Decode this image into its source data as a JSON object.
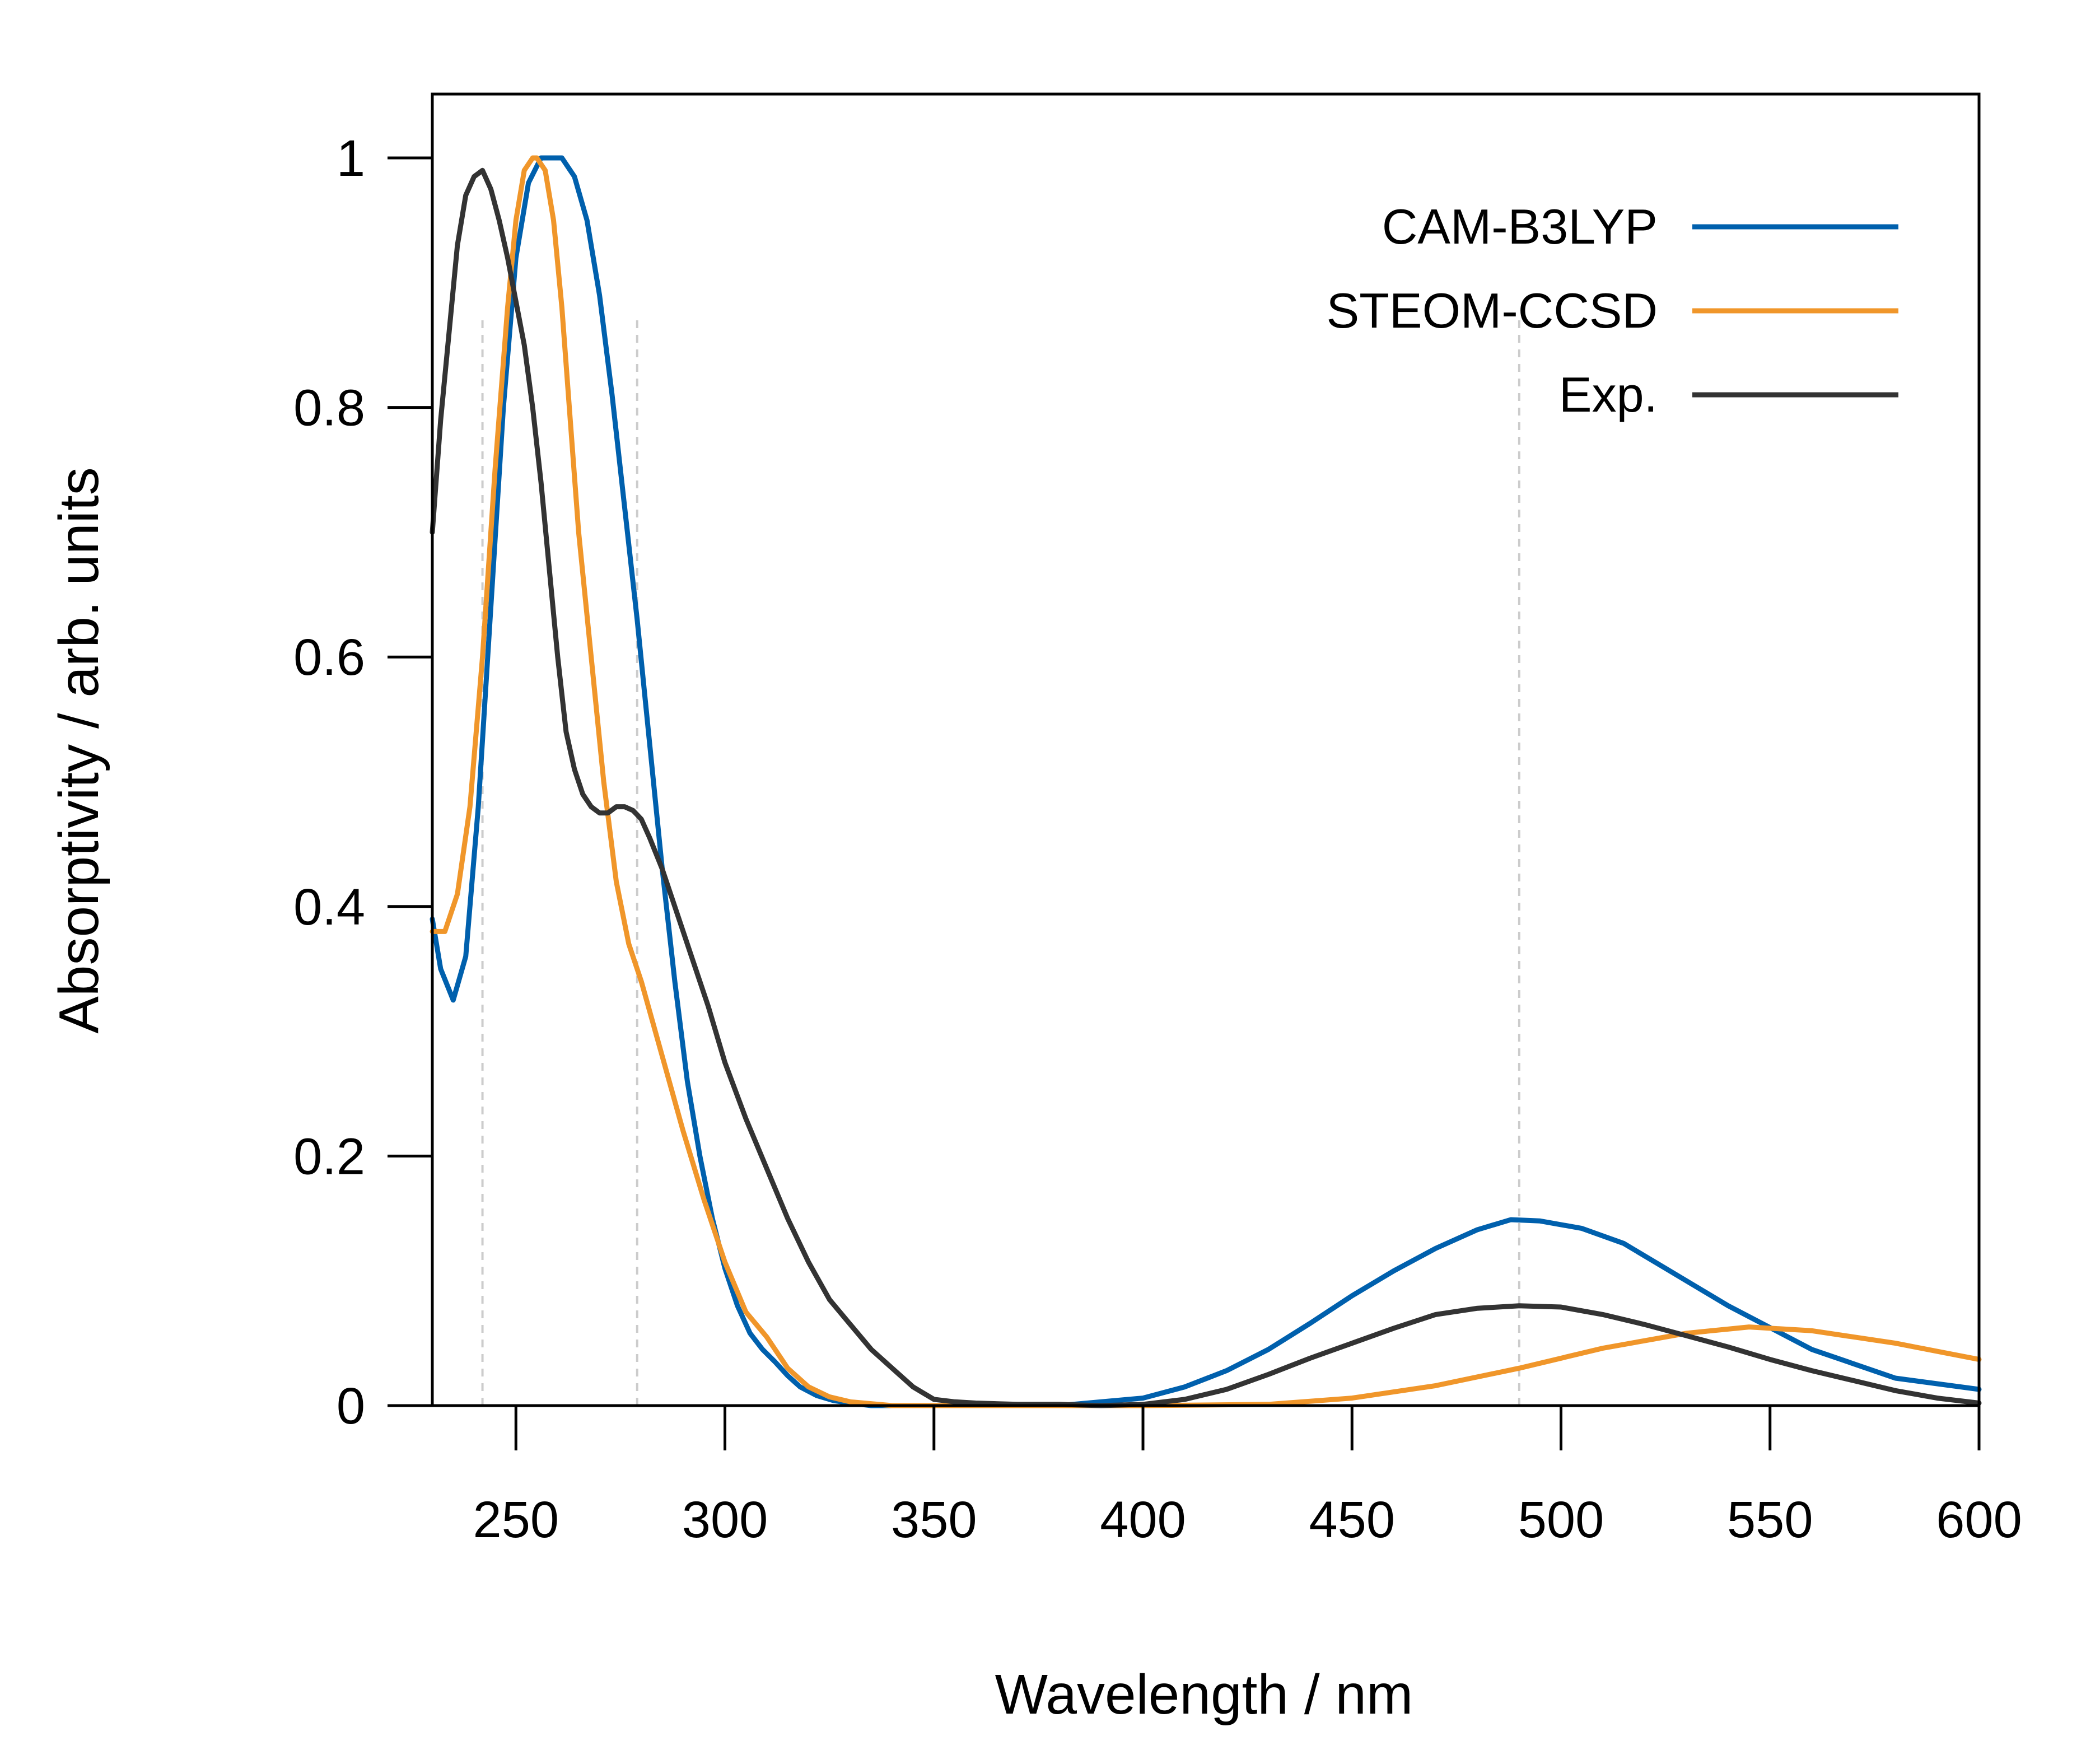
{
  "chart_data": {
    "type": "line",
    "title": "",
    "xlabel": "Wavelength / nm",
    "ylabel": "Absorptivity / arb. units",
    "xlim": [
      230,
      600
    ],
    "ylim": [
      0,
      1.05
    ],
    "grid": false,
    "legend_position": "top-right",
    "x_ticks": [
      250,
      300,
      350,
      400,
      450,
      500,
      550,
      600
    ],
    "x_tick_labels": [
      "250",
      "300",
      "350",
      "400",
      "450",
      "500",
      "550",
      "600"
    ],
    "y_ticks": [
      0,
      0.2,
      0.4,
      0.6,
      0.8,
      1
    ],
    "y_tick_labels": [
      "0",
      "0.2",
      "0.4",
      "0.6",
      "0.8",
      "1"
    ],
    "reference_lines_x": [
      242,
      279,
      490
    ],
    "series": [
      {
        "name": "CAM-B3LYP",
        "color": "#0060ad",
        "x": [
          230,
          232,
          235,
          238,
          241,
          244,
          247,
          250,
          253,
          256,
          259,
          261,
          264,
          267,
          270,
          273,
          276,
          279,
          282,
          285,
          288,
          291,
          294,
          297,
          300,
          303,
          306,
          309,
          312,
          315,
          318,
          322,
          326,
          330,
          335,
          340,
          350,
          360,
          380,
          400,
          410,
          420,
          430,
          440,
          450,
          460,
          470,
          480,
          488,
          495,
          505,
          515,
          525,
          540,
          560,
          580,
          600
        ],
        "y": [
          0.39,
          0.35,
          0.325,
          0.36,
          0.48,
          0.64,
          0.8,
          0.92,
          0.98,
          1.0,
          1.0,
          1.0,
          0.985,
          0.95,
          0.89,
          0.81,
          0.72,
          0.63,
          0.53,
          0.43,
          0.34,
          0.26,
          0.2,
          0.15,
          0.11,
          0.08,
          0.058,
          0.045,
          0.035,
          0.024,
          0.015,
          0.008,
          0.004,
          0.002,
          0.0,
          0.0,
          0.0,
          0.0,
          0.0,
          0.006,
          0.015,
          0.028,
          0.045,
          0.066,
          0.088,
          0.108,
          0.126,
          0.141,
          0.149,
          0.148,
          0.142,
          0.13,
          0.11,
          0.08,
          0.045,
          0.022,
          0.013
        ]
      },
      {
        "name": "STEOM-CCSD",
        "color": "#f0962a",
        "x": [
          230,
          233,
          236,
          239,
          242,
          245,
          248,
          250,
          252,
          254,
          255,
          257,
          259,
          261,
          263,
          265,
          268,
          271,
          274,
          277,
          280,
          285,
          290,
          295,
          300,
          305,
          310,
          315,
          320,
          325,
          330,
          340,
          350,
          400,
          430,
          450,
          470,
          490,
          510,
          530,
          545,
          560,
          580,
          600
        ],
        "y": [
          0.38,
          0.38,
          0.41,
          0.48,
          0.6,
          0.75,
          0.88,
          0.95,
          0.99,
          1.0,
          1.0,
          0.99,
          0.95,
          0.88,
          0.79,
          0.7,
          0.6,
          0.5,
          0.42,
          0.37,
          0.34,
          0.28,
          0.22,
          0.165,
          0.115,
          0.075,
          0.055,
          0.03,
          0.015,
          0.007,
          0.003,
          0.0,
          0.0,
          0.0,
          0.001,
          0.006,
          0.016,
          0.03,
          0.046,
          0.058,
          0.063,
          0.06,
          0.05,
          0.037
        ]
      },
      {
        "name": "Exp.",
        "color": "#333333",
        "x": [
          230,
          232,
          234,
          236,
          238,
          240,
          242,
          244,
          246,
          248,
          250,
          252,
          254,
          256,
          258,
          260,
          262,
          264,
          266,
          268,
          270,
          272,
          274,
          276,
          278,
          280,
          282,
          285,
          288,
          292,
          296,
          300,
          305,
          310,
          315,
          320,
          325,
          330,
          335,
          340,
          345,
          350,
          355,
          360,
          370,
          380,
          390,
          400,
          410,
          420,
          430,
          440,
          450,
          460,
          470,
          480,
          490,
          500,
          510,
          520,
          530,
          540,
          550,
          560,
          570,
          580,
          590,
          600
        ],
        "y": [
          0.7,
          0.79,
          0.86,
          0.93,
          0.97,
          0.985,
          0.99,
          0.975,
          0.95,
          0.92,
          0.885,
          0.85,
          0.8,
          0.74,
          0.67,
          0.6,
          0.54,
          0.51,
          0.49,
          0.48,
          0.475,
          0.475,
          0.48,
          0.48,
          0.477,
          0.47,
          0.455,
          0.43,
          0.4,
          0.36,
          0.32,
          0.275,
          0.23,
          0.19,
          0.15,
          0.115,
          0.085,
          0.065,
          0.045,
          0.03,
          0.015,
          0.005,
          0.003,
          0.002,
          0.001,
          0.001,
          0.0,
          0.001,
          0.005,
          0.013,
          0.025,
          0.038,
          0.05,
          0.062,
          0.073,
          0.078,
          0.08,
          0.079,
          0.073,
          0.065,
          0.056,
          0.047,
          0.037,
          0.028,
          0.02,
          0.012,
          0.006,
          0.002
        ]
      }
    ]
  }
}
